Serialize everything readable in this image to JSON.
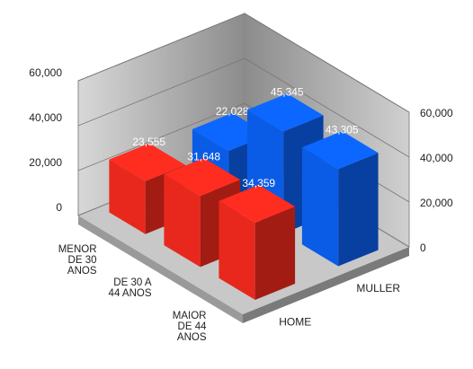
{
  "chart_data": {
    "type": "bar3d",
    "categories": [
      "MENOR DE 30 ANOS",
      "DE 30 A 44 ANOS",
      "MAIOR DE 44 ANOS"
    ],
    "series": [
      {
        "name": "HOME",
        "color": "#e8281c",
        "values": [
          23555,
          31648,
          34359
        ],
        "value_labels": [
          "23,555",
          "31,648",
          "34,359"
        ]
      },
      {
        "name": "MULLER",
        "color": "#0a5ce6",
        "values": [
          22028,
          45345,
          43305
        ],
        "value_labels": [
          "22,028",
          "45,345",
          "43,305"
        ]
      }
    ],
    "ylim": [
      0,
      60000
    ],
    "yticks": [
      0,
      {
        "value": 20000,
        "label": "20,000"
      },
      {
        "value": 40000,
        "label": "40,000"
      },
      {
        "value": 60000,
        "label": "60,000"
      }
    ],
    "grid": true
  }
}
